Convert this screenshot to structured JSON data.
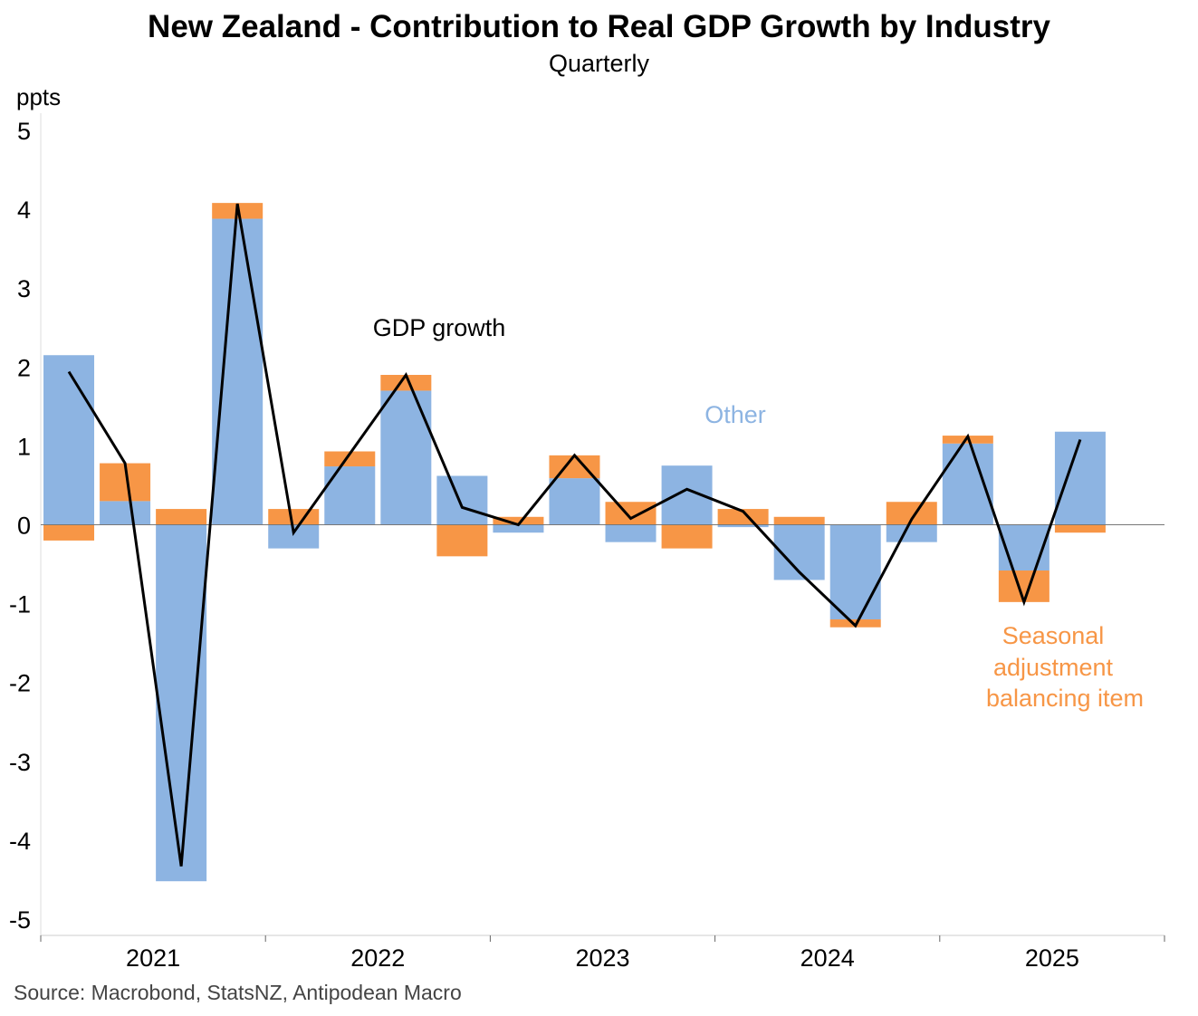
{
  "title": "New Zealand - Contribution to Real GDP Growth by Industry",
  "subtitle": "Quarterly",
  "source": "Source: Macrobond, StatsNZ, Antipodean Macro",
  "chart_data": {
    "type": "bar",
    "stacked": true,
    "ylabel": "ppts",
    "ylim": [
      -5,
      5
    ],
    "yticks": [
      "5",
      "4",
      "3",
      "2",
      "1",
      "0",
      "-1",
      "-2",
      "-3",
      "-4",
      "-5"
    ],
    "year_labels": [
      "2021",
      "2022",
      "2023",
      "2024",
      "2025"
    ],
    "categories": [
      "2021Q1",
      "2021Q2",
      "2021Q3",
      "2021Q4",
      "2022Q1",
      "2022Q2",
      "2022Q3",
      "2022Q4",
      "2023Q1",
      "2023Q2",
      "2023Q3",
      "2023Q4",
      "2024Q1",
      "2024Q2",
      "2024Q3",
      "2024Q4",
      "2025Q1",
      "2025Q2",
      "2025Q3"
    ],
    "series": [
      {
        "name": "Other",
        "type": "bar",
        "color": "#8db4e2",
        "values": [
          2.15,
          0.3,
          -4.52,
          3.88,
          -0.3,
          0.74,
          1.7,
          0.62,
          -0.1,
          0.59,
          -0.22,
          0.75,
          -0.03,
          -0.7,
          -1.2,
          -0.22,
          1.03,
          -0.58,
          1.18
        ]
      },
      {
        "name": "Seasonal adjustment balancing item",
        "type": "bar",
        "color": "#f79646",
        "values": [
          -0.2,
          0.48,
          0.2,
          0.2,
          0.2,
          0.19,
          0.2,
          -0.4,
          0.1,
          0.29,
          0.29,
          -0.3,
          0.2,
          0.1,
          -0.1,
          0.29,
          0.1,
          -0.4,
          -0.1
        ]
      },
      {
        "name": "GDP growth",
        "type": "line",
        "color": "#000000",
        "values": [
          1.94,
          0.78,
          -4.33,
          4.07,
          -0.1,
          0.9,
          1.9,
          0.22,
          0.0,
          0.88,
          0.08,
          0.45,
          0.17,
          -0.6,
          -1.28,
          0.07,
          1.12,
          -0.98,
          1.08
        ]
      }
    ],
    "annotations": {
      "gdp": "GDP growth",
      "other": "Other",
      "seasonal": [
        "Seasonal",
        "adjustment",
        "balancing item"
      ]
    }
  }
}
